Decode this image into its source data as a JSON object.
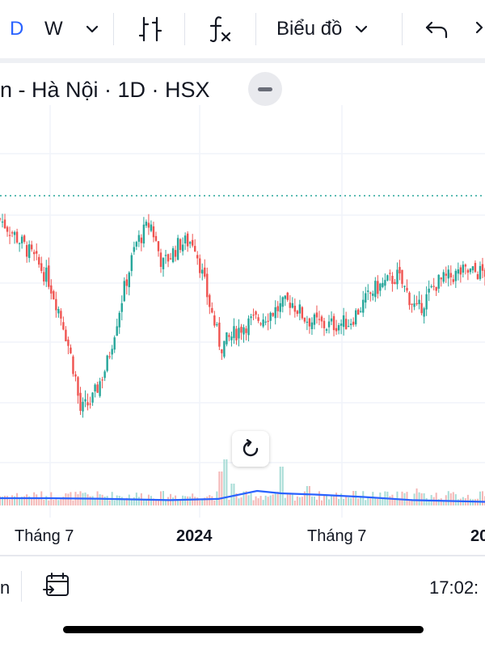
{
  "toolbar": {
    "interval_day": "D",
    "interval_week": "W",
    "chart_type_label": "Biểu đồ",
    "icons": [
      "chevron-down-icon",
      "bar-style-icon",
      "function-icon",
      "chevron-down-icon",
      "undo-icon"
    ],
    "accent_color": "#2962ff"
  },
  "legend": {
    "symbol_text": "n - Hà Nội · 1D · HSX"
  },
  "x_axis": {
    "labels": [
      "Tháng 7",
      "2024",
      "Tháng 7",
      "20"
    ]
  },
  "bottom_bar": {
    "left_text": "n",
    "time_text": "17:02:"
  },
  "colors": {
    "up": "#26a69a",
    "down": "#ef5350",
    "ma_line": "#2962ff",
    "dotted_line": "#26a69a",
    "grid": "#f0f3fa"
  },
  "chart_data": {
    "type": "candlestick",
    "price_series": [
      {
        "t": 0,
        "v": 68
      },
      {
        "t": 0.04,
        "v": 62
      },
      {
        "t": 0.07,
        "v": 57
      },
      {
        "t": 0.1,
        "v": 51
      },
      {
        "t": 0.13,
        "v": 39
      },
      {
        "t": 0.155,
        "v": 24
      },
      {
        "t": 0.165,
        "v": 14
      },
      {
        "t": 0.19,
        "v": 17
      },
      {
        "t": 0.22,
        "v": 27
      },
      {
        "t": 0.25,
        "v": 45
      },
      {
        "t": 0.28,
        "v": 61
      },
      {
        "t": 0.31,
        "v": 67
      },
      {
        "t": 0.335,
        "v": 55
      },
      {
        "t": 0.37,
        "v": 61
      },
      {
        "t": 0.4,
        "v": 62
      },
      {
        "t": 0.43,
        "v": 45
      },
      {
        "t": 0.455,
        "v": 32
      },
      {
        "t": 0.5,
        "v": 38
      },
      {
        "t": 0.55,
        "v": 41
      },
      {
        "t": 0.6,
        "v": 45
      },
      {
        "t": 0.63,
        "v": 40
      },
      {
        "t": 0.67,
        "v": 38
      },
      {
        "t": 0.72,
        "v": 39
      },
      {
        "t": 0.77,
        "v": 48
      },
      {
        "t": 0.82,
        "v": 52
      },
      {
        "t": 0.86,
        "v": 42
      },
      {
        "t": 0.9,
        "v": 50
      },
      {
        "t": 0.95,
        "v": 53
      },
      {
        "t": 1.0,
        "v": 53
      }
    ],
    "ma_series": [
      {
        "t": 0,
        "v": 3
      },
      {
        "t": 0.1,
        "v": 3
      },
      {
        "t": 0.2,
        "v": 2.8
      },
      {
        "t": 0.35,
        "v": 2.2
      },
      {
        "t": 0.45,
        "v": 2.7
      },
      {
        "t": 0.53,
        "v": 6
      },
      {
        "t": 0.58,
        "v": 5
      },
      {
        "t": 0.65,
        "v": 4.5
      },
      {
        "t": 0.75,
        "v": 3.5
      },
      {
        "t": 0.85,
        "v": 2.2
      },
      {
        "t": 1.0,
        "v": 1.5
      }
    ],
    "volume_spikes": [
      {
        "t": 0.455,
        "v": 14
      },
      {
        "t": 0.465,
        "v": 19
      },
      {
        "t": 0.48,
        "v": 9
      },
      {
        "t": 0.58,
        "v": 16
      },
      {
        "t": 0.635,
        "v": 8
      },
      {
        "t": 0.73,
        "v": 6
      },
      {
        "t": 0.86,
        "v": 7
      }
    ],
    "x_labels": [
      "Tháng 7",
      "2024",
      "Tháng 7",
      "20"
    ],
    "dotted_level": 85,
    "grid": true
  }
}
